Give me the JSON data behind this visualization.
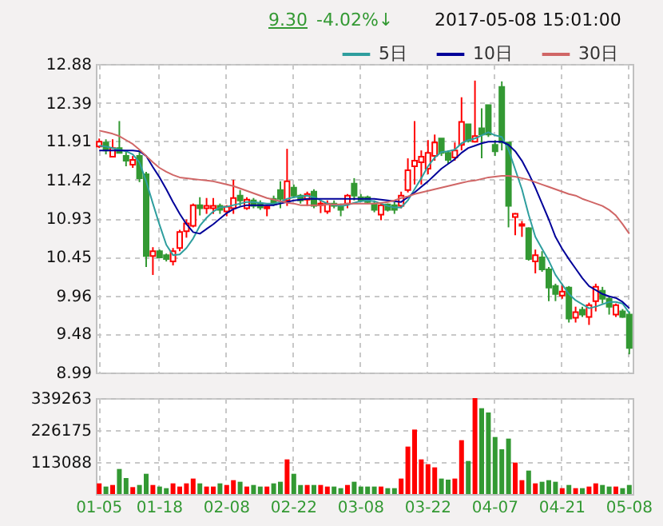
{
  "chart_data": [
    {
      "type": "candlestick",
      "annotations": [
        "9.30",
        "-4.02%↓",
        "2017-05-08 15:01:00"
      ],
      "categories": [
        null,
        null,
        null,
        null,
        null,
        null,
        null,
        null,
        null,
        null,
        null,
        null,
        null,
        null,
        null,
        null,
        null,
        null,
        null,
        null,
        null,
        null,
        null,
        null,
        null,
        null,
        null,
        null,
        null,
        null,
        null,
        null,
        null,
        null,
        null,
        null,
        null,
        null,
        null,
        null,
        null,
        null,
        null,
        null,
        null,
        null,
        null,
        null,
        null,
        null,
        null,
        null,
        null,
        null,
        null,
        null,
        null,
        null,
        null,
        null,
        null,
        null,
        null,
        null,
        null,
        null,
        null,
        null,
        null,
        null,
        null,
        null,
        null,
        null,
        null,
        null,
        null,
        null,
        null,
        null
      ],
      "ohlc": [
        [
          11.84,
          11.94,
          11.82,
          11.9
        ],
        [
          11.89,
          11.93,
          11.74,
          11.79
        ],
        [
          11.71,
          11.93,
          11.71,
          11.82
        ],
        [
          11.82,
          12.16,
          11.76,
          11.76
        ],
        [
          11.72,
          11.79,
          11.59,
          11.66
        ],
        [
          11.61,
          11.72,
          11.57,
          11.67
        ],
        [
          11.72,
          11.8,
          11.39,
          11.44
        ],
        [
          11.49,
          11.52,
          10.32,
          10.46
        ],
        [
          10.46,
          10.57,
          10.22,
          10.52
        ],
        [
          10.52,
          10.54,
          10.43,
          10.44
        ],
        [
          10.47,
          10.49,
          10.39,
          10.42
        ],
        [
          10.39,
          10.56,
          10.34,
          10.52
        ],
        [
          10.56,
          10.79,
          10.52,
          10.76
        ],
        [
          10.77,
          10.92,
          10.69,
          10.87
        ],
        [
          10.84,
          11.12,
          10.82,
          11.1
        ],
        [
          11.1,
          11.2,
          10.97,
          11.06
        ],
        [
          11.06,
          11.19,
          10.99,
          11.09
        ],
        [
          11.06,
          11.19,
          10.99,
          11.09
        ],
        [
          11.09,
          11.12,
          10.99,
          11.04
        ],
        [
          11.02,
          11.1,
          10.96,
          11.08
        ],
        [
          11.06,
          11.42,
          10.99,
          11.19
        ],
        [
          11.22,
          11.29,
          11.09,
          11.16
        ],
        [
          11.06,
          11.2,
          11.04,
          11.17
        ],
        [
          11.16,
          11.19,
          11.06,
          11.09
        ],
        [
          11.12,
          11.16,
          11.04,
          11.07
        ],
        [
          11.06,
          11.09,
          10.96,
          11.08
        ],
        [
          11.18,
          11.22,
          11.09,
          11.11
        ],
        [
          11.29,
          11.4,
          11.06,
          11.18
        ],
        [
          11.16,
          11.81,
          11.09,
          11.4
        ],
        [
          11.32,
          11.36,
          11.19,
          11.22
        ],
        [
          11.22,
          11.24,
          11.12,
          11.16
        ],
        [
          11.17,
          11.27,
          11.09,
          11.24
        ],
        [
          11.27,
          11.3,
          11.06,
          11.09
        ],
        [
          11.1,
          11.16,
          11.0,
          11.12
        ],
        [
          11.02,
          11.16,
          10.99,
          11.12
        ],
        [
          11.12,
          11.16,
          11.06,
          11.09
        ],
        [
          11.09,
          11.12,
          10.96,
          11.04
        ],
        [
          11.12,
          11.24,
          11.06,
          11.22
        ],
        [
          11.37,
          11.44,
          11.16,
          11.22
        ],
        [
          11.2,
          11.24,
          11.14,
          11.16
        ],
        [
          11.2,
          11.22,
          11.12,
          11.14
        ],
        [
          11.12,
          11.16,
          11.01,
          11.04
        ],
        [
          10.98,
          11.12,
          10.91,
          11.1
        ],
        [
          11.11,
          11.12,
          11.02,
          11.04
        ],
        [
          11.1,
          11.14,
          10.99,
          11.04
        ],
        [
          11.09,
          11.27,
          11.06,
          11.22
        ],
        [
          11.29,
          11.69,
          11.26,
          11.54
        ],
        [
          11.59,
          12.16,
          11.36,
          11.66
        ],
        [
          11.64,
          11.79,
          11.36,
          11.71
        ],
        [
          11.56,
          11.92,
          11.49,
          11.76
        ],
        [
          11.72,
          11.99,
          11.66,
          11.89
        ],
        [
          11.94,
          11.94,
          11.72,
          11.76
        ],
        [
          11.76,
          11.79,
          11.62,
          11.67
        ],
        [
          11.7,
          11.89,
          11.66,
          11.79
        ],
        [
          11.86,
          12.46,
          11.79,
          12.15
        ],
        [
          12.12,
          12.12,
          11.89,
          11.91
        ],
        [
          11.9,
          12.67,
          11.89,
          11.97
        ],
        [
          12.07,
          12.32,
          11.69,
          11.99
        ],
        [
          12.36,
          12.36,
          11.96,
          11.99
        ],
        [
          11.86,
          11.92,
          11.72,
          11.78
        ],
        [
          12.59,
          12.66,
          11.79,
          11.89
        ],
        [
          11.89,
          11.89,
          10.82,
          11.09
        ],
        [
          10.95,
          11.0,
          10.72,
          10.99
        ],
        [
          10.84,
          10.9,
          10.7,
          10.86
        ],
        [
          10.81,
          10.82,
          10.4,
          10.42
        ],
        [
          10.39,
          10.54,
          10.24,
          10.47
        ],
        [
          10.44,
          10.52,
          10.26,
          10.29
        ],
        [
          10.29,
          10.32,
          9.89,
          10.06
        ],
        [
          10.08,
          10.11,
          9.89,
          9.98
        ],
        [
          9.96,
          10.11,
          9.92,
          10.01
        ],
        [
          10.06,
          10.08,
          9.62,
          9.67
        ],
        [
          9.68,
          9.82,
          9.62,
          9.75
        ],
        [
          9.78,
          9.82,
          9.69,
          9.72
        ],
        [
          9.69,
          9.87,
          9.59,
          9.84
        ],
        [
          9.89,
          10.11,
          9.76,
          10.07
        ],
        [
          10.02,
          10.07,
          9.86,
          9.92
        ],
        [
          9.92,
          9.96,
          9.72,
          9.82
        ],
        [
          9.72,
          9.86,
          9.69,
          9.84
        ],
        [
          9.76,
          9.79,
          9.68,
          9.69
        ],
        [
          9.72,
          9.76,
          9.22,
          9.3
        ]
      ],
      "colors": [
        "#ff0000",
        "#339933",
        "#ff0000",
        "#339933",
        "#339933",
        "#ff0000",
        "#339933",
        "#339933",
        "#ff0000",
        "#339933",
        "#339933",
        "#ff0000",
        "#ff0000",
        "#ff0000",
        "#ff0000",
        "#339933",
        "#ff0000",
        "#ff0000",
        "#339933",
        "#ff0000",
        "#ff0000",
        "#339933",
        "#ff0000",
        "#339933",
        "#339933",
        "#ff0000",
        "#339933",
        "#339933",
        "#ff0000",
        "#339933",
        "#339933",
        "#ff0000",
        "#339933",
        "#ff0000",
        "#ff0000",
        "#339933",
        "#339933",
        "#ff0000",
        "#339933",
        "#339933",
        "#339933",
        "#339933",
        "#ff0000",
        "#339933",
        "#339933",
        "#ff0000",
        "#ff0000",
        "#ff0000",
        "#ff0000",
        "#ff0000",
        "#ff0000",
        "#339933",
        "#339933",
        "#ff0000",
        "#ff0000",
        "#339933",
        "#ff0000",
        "#339933",
        "#339933",
        "#339933",
        "#339933",
        "#339933",
        "#ff0000",
        "#ff0000",
        "#339933",
        "#ff0000",
        "#339933",
        "#339933",
        "#339933",
        "#ff0000",
        "#339933",
        "#ff0000",
        "#339933",
        "#ff0000",
        "#ff0000",
        "#339933",
        "#339933",
        "#ff0000",
        "#339933",
        "#339933"
      ],
      "series": [
        {
          "name": "5日",
          "type": "line",
          "color": "#2e9e9e",
          "values": [
            11.85,
            11.84,
            11.82,
            11.8,
            11.78,
            11.74,
            11.64,
            11.4,
            11.12,
            10.85,
            10.6,
            10.47,
            10.48,
            10.56,
            10.68,
            10.84,
            10.94,
            11.02,
            11.07,
            11.08,
            11.1,
            11.12,
            11.14,
            11.14,
            11.13,
            11.12,
            11.12,
            11.14,
            11.18,
            11.2,
            11.21,
            11.22,
            11.2,
            11.16,
            11.12,
            11.1,
            11.09,
            11.1,
            11.13,
            11.15,
            11.16,
            11.15,
            11.12,
            11.09,
            11.07,
            11.07,
            11.16,
            11.3,
            11.44,
            11.59,
            11.7,
            11.77,
            11.78,
            11.8,
            11.88,
            11.92,
            11.94,
            11.98,
            12.02,
            11.98,
            11.96,
            11.8,
            11.55,
            11.3,
            10.98,
            10.7,
            10.55,
            10.4,
            10.22,
            10.1,
            9.98,
            9.9,
            9.85,
            9.8,
            9.82,
            9.85,
            9.88,
            9.88,
            9.86,
            9.74
          ]
        },
        {
          "name": "10日",
          "type": "line",
          "color": "#000099",
          "values": [
            11.79,
            11.79,
            11.79,
            11.79,
            11.79,
            11.79,
            11.78,
            11.72,
            11.58,
            11.45,
            11.3,
            11.14,
            10.99,
            10.86,
            10.76,
            10.74,
            10.8,
            10.86,
            10.93,
            11.0,
            11.05,
            11.08,
            11.1,
            11.1,
            11.1,
            11.1,
            11.1,
            11.12,
            11.14,
            11.16,
            11.17,
            11.18,
            11.18,
            11.18,
            11.18,
            11.18,
            11.18,
            11.18,
            11.18,
            11.18,
            11.18,
            11.18,
            11.17,
            11.16,
            11.15,
            11.14,
            11.2,
            11.26,
            11.33,
            11.4,
            11.48,
            11.56,
            11.62,
            11.68,
            11.76,
            11.82,
            11.85,
            11.88,
            11.9,
            11.9,
            11.9,
            11.86,
            11.78,
            11.66,
            11.5,
            11.32,
            11.12,
            10.92,
            10.7,
            10.55,
            10.42,
            10.3,
            10.18,
            10.08,
            10.03,
            9.98,
            9.95,
            9.93,
            9.88,
            9.8
          ]
        },
        {
          "name": "30日",
          "type": "line",
          "color": "#d06666",
          "values": [
            12.04,
            12.02,
            12.0,
            11.97,
            11.92,
            11.87,
            11.8,
            11.72,
            11.64,
            11.57,
            11.52,
            11.48,
            11.45,
            11.44,
            11.43,
            11.42,
            11.41,
            11.4,
            11.38,
            11.36,
            11.34,
            11.31,
            11.28,
            11.25,
            11.22,
            11.19,
            11.17,
            11.15,
            11.13,
            11.12,
            11.1,
            11.1,
            11.1,
            11.1,
            11.11,
            11.11,
            11.11,
            11.12,
            11.12,
            11.12,
            11.12,
            11.12,
            11.13,
            11.14,
            11.16,
            11.19,
            11.21,
            11.24,
            11.26,
            11.28,
            11.3,
            11.32,
            11.34,
            11.36,
            11.38,
            11.4,
            11.41,
            11.43,
            11.45,
            11.46,
            11.47,
            11.47,
            11.46,
            11.44,
            11.42,
            11.39,
            11.36,
            11.33,
            11.3,
            11.27,
            11.24,
            11.22,
            11.18,
            11.15,
            11.12,
            11.09,
            11.04,
            10.97,
            10.86,
            10.74
          ]
        }
      ],
      "ylim": [
        8.99,
        12.88
      ],
      "yticks": [
        8.99,
        9.48,
        9.96,
        10.45,
        10.93,
        11.42,
        11.91,
        12.39,
        12.88
      ],
      "grid": true,
      "legend": "top right",
      "tick_labels": "y"
    },
    {
      "type": "bar",
      "categories": [
        "01-05",
        null,
        null,
        null,
        null,
        null,
        null,
        null,
        null,
        "01-18",
        null,
        null,
        null,
        null,
        null,
        null,
        null,
        null,
        null,
        "02-08",
        null,
        null,
        null,
        null,
        null,
        null,
        null,
        null,
        null,
        "02-22",
        null,
        null,
        null,
        null,
        null,
        null,
        null,
        null,
        null,
        "03-08",
        null,
        null,
        null,
        null,
        null,
        null,
        null,
        null,
        null,
        "03-22",
        null,
        null,
        null,
        null,
        null,
        null,
        null,
        null,
        null,
        "04-07",
        null,
        null,
        null,
        null,
        null,
        null,
        null,
        null,
        null,
        "04-21",
        null,
        null,
        null,
        null,
        null,
        null,
        null,
        null,
        null,
        "05-08"
      ],
      "values": [
        37700,
        26400,
        32000,
        88600,
        56500,
        24500,
        32000,
        71600,
        32000,
        26400,
        20700,
        37700,
        26400,
        37700,
        54700,
        37700,
        26400,
        26400,
        37700,
        32000,
        49000,
        43400,
        26400,
        32000,
        26400,
        26400,
        37700,
        43400,
        122500,
        71600,
        32000,
        32000,
        32000,
        32000,
        26400,
        26400,
        20700,
        32000,
        43400,
        26400,
        26400,
        26400,
        26400,
        20700,
        20700,
        54700,
        167800,
        228000,
        122500,
        105600,
        94300,
        54700,
        50900,
        54700,
        190400,
        116900,
        339263,
        303500,
        288400,
        201700,
        158300,
        196000,
        111200,
        49000,
        82900,
        37700,
        43400,
        49000,
        43400,
        20700,
        32000,
        20700,
        20700,
        26400,
        37700,
        32000,
        26400,
        26400,
        20700,
        32000
      ],
      "colors": [
        "#ff0000",
        "#339933",
        "#ff0000",
        "#339933",
        "#339933",
        "#ff0000",
        "#339933",
        "#339933",
        "#ff0000",
        "#339933",
        "#339933",
        "#ff0000",
        "#ff0000",
        "#ff0000",
        "#ff0000",
        "#339933",
        "#ff0000",
        "#ff0000",
        "#339933",
        "#ff0000",
        "#ff0000",
        "#339933",
        "#ff0000",
        "#339933",
        "#339933",
        "#ff0000",
        "#339933",
        "#339933",
        "#ff0000",
        "#339933",
        "#339933",
        "#ff0000",
        "#339933",
        "#ff0000",
        "#ff0000",
        "#339933",
        "#339933",
        "#ff0000",
        "#339933",
        "#339933",
        "#339933",
        "#339933",
        "#ff0000",
        "#339933",
        "#339933",
        "#ff0000",
        "#ff0000",
        "#ff0000",
        "#ff0000",
        "#ff0000",
        "#ff0000",
        "#339933",
        "#339933",
        "#ff0000",
        "#ff0000",
        "#339933",
        "#ff0000",
        "#339933",
        "#339933",
        "#339933",
        "#339933",
        "#339933",
        "#ff0000",
        "#ff0000",
        "#339933",
        "#ff0000",
        "#339933",
        "#339933",
        "#339933",
        "#ff0000",
        "#339933",
        "#ff0000",
        "#339933",
        "#ff0000",
        "#ff0000",
        "#339933",
        "#339933",
        "#ff0000",
        "#339933",
        "#339933"
      ],
      "ylim": [
        0,
        339263
      ],
      "yticks": [
        113088,
        226175,
        339263
      ],
      "grid": true
    }
  ]
}
